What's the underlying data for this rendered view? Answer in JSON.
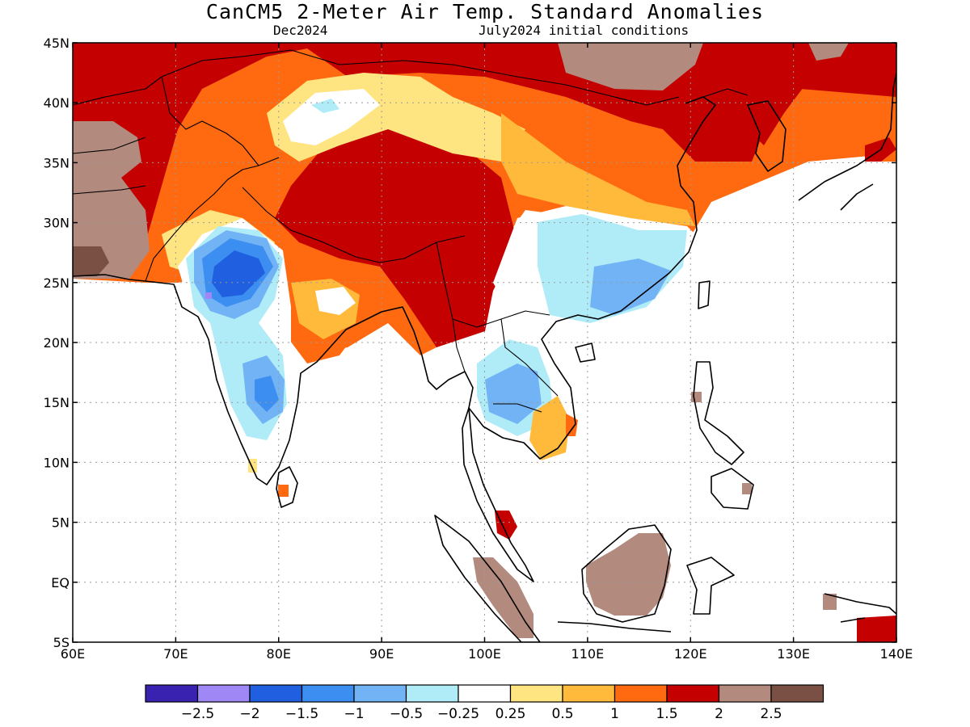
{
  "title": "CanCM5 2-Meter Air Temp. Standard Anomalies",
  "target_month": "Dec2024",
  "init_conditions": "July2024 initial conditions",
  "axes": {
    "lat_labels": [
      "45N",
      "40N",
      "35N",
      "30N",
      "25N",
      "20N",
      "15N",
      "10N",
      "5N",
      "EQ",
      "5S"
    ],
    "lon_labels": [
      "60E",
      "70E",
      "80E",
      "90E",
      "100E",
      "110E",
      "120E",
      "130E",
      "140E"
    ],
    "lon_range": [
      60,
      140
    ],
    "lat_range": [
      -5,
      45
    ]
  },
  "legend": {
    "colors": [
      "#3a22b0",
      "#9f87f5",
      "#1f5fe0",
      "#3c8ef0",
      "#72b3f5",
      "#b0ecf8",
      "#ffffff",
      "#ffe482",
      "#ffba3c",
      "#ff6a10",
      "#c40000",
      "#b38a7e",
      "#7a4f44"
    ],
    "labels": [
      "−2.5",
      "−2",
      "−1.5",
      "−1",
      "−0.5",
      "−0.25",
      "0.25",
      "0.5",
      "1",
      "1.5",
      "2",
      "2.5"
    ]
  },
  "palette": {
    "brown_dark": "#7a4f44",
    "brown": "#b38a7e",
    "red": "#c40000",
    "orange": "#ff6a10",
    "gold": "#ffba3c",
    "yellow": "#ffe482",
    "cyan": "#b0ecf8",
    "lightblue": "#72b3f5",
    "blue": "#3c8ef0",
    "deepblue": "#1f5fe0",
    "lavender": "#9f87f5"
  }
}
